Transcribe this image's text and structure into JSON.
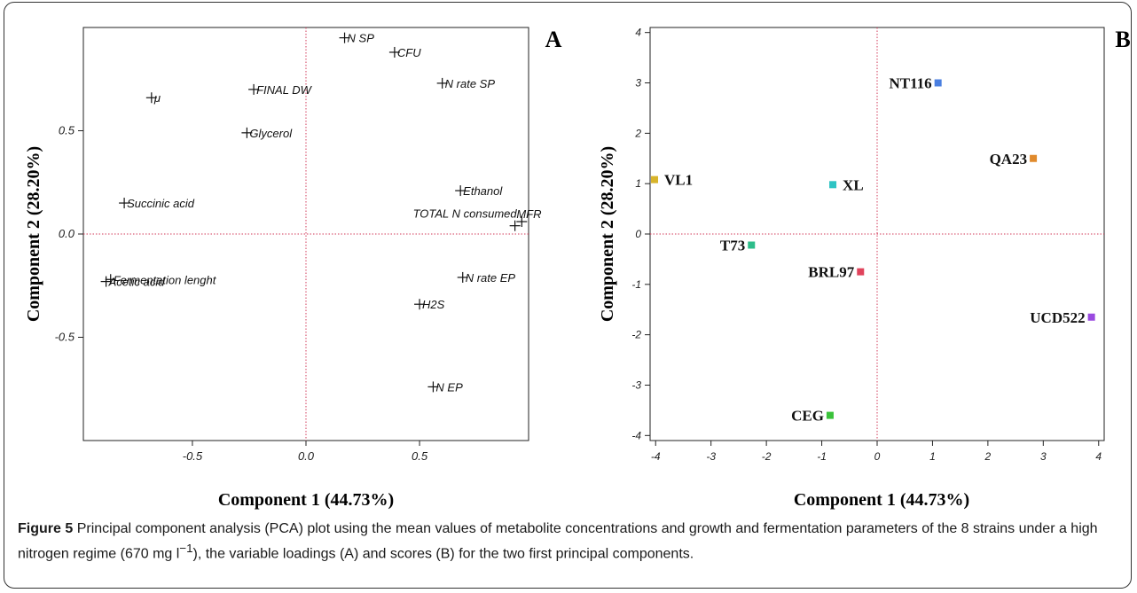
{
  "panels": {
    "A": {
      "letter": "A"
    },
    "B": {
      "letter": "B"
    }
  },
  "caption": {
    "label": "Figure 5",
    "text": "Principal component analysis (PCA) plot using the mean values of metabolite concentrations and growth and fermentation parameters of the 8 strains under a high nitrogen regime (670 mg l",
    "superscript": "−1",
    "text_end": "), the variable loadings (A) and scores (B) for the two first principal components."
  },
  "chart_data": [
    {
      "type": "scatter",
      "panel": "A",
      "xlabel": "Component 1 (44.73%)",
      "ylabel": "Component 2 (28.20%)",
      "xlim": [
        -0.98,
        0.98
      ],
      "ylim": [
        -1.0,
        1.0
      ],
      "xticks": [
        -0.5,
        0.0,
        0.5
      ],
      "yticks": [
        -0.5,
        0.0,
        0.5
      ],
      "xtick_labels": [
        "-0.5",
        "0.0",
        "0.5"
      ],
      "ytick_labels": [
        "-0.5",
        "0.0",
        "0.5"
      ],
      "grid": false,
      "points": [
        {
          "label": "N SP",
          "x": 0.17,
          "y": 0.95
        },
        {
          "label": "CFU",
          "x": 0.39,
          "y": 0.88
        },
        {
          "label": "N rate SP",
          "x": 0.6,
          "y": 0.73
        },
        {
          "label": "FINAL DW",
          "x": -0.23,
          "y": 0.7
        },
        {
          "label": "μ",
          "x": -0.68,
          "y": 0.66
        },
        {
          "label": "Glycerol",
          "x": -0.26,
          "y": 0.49
        },
        {
          "label": "Succinic acid",
          "x": -0.8,
          "y": 0.15
        },
        {
          "label": "Ethanol",
          "x": 0.68,
          "y": 0.21
        },
        {
          "label": "MFR",
          "x": 0.95,
          "y": 0.06
        },
        {
          "label": "TOTAL N consumed",
          "x": 0.92,
          "y": 0.04
        },
        {
          "label": "Fermentation lenght",
          "x": -0.86,
          "y": -0.22
        },
        {
          "label": "Acetic acid",
          "x": -0.88,
          "y": -0.23
        },
        {
          "label": "N rate EP",
          "x": 0.69,
          "y": -0.21
        },
        {
          "label": "H2S",
          "x": 0.5,
          "y": -0.34
        },
        {
          "label": "N EP",
          "x": 0.56,
          "y": -0.74
        }
      ]
    },
    {
      "type": "scatter",
      "panel": "B",
      "xlabel": "Component 1 (44.73%)",
      "ylabel": "Component 2 (28.20%)",
      "xlim": [
        -4.1,
        4.1
      ],
      "ylim": [
        -4.1,
        4.1
      ],
      "xticks": [
        -4,
        -3,
        -2,
        -1,
        0,
        1,
        2,
        3,
        4
      ],
      "yticks": [
        -4,
        -3,
        -2,
        -1,
        0,
        1,
        2,
        3,
        4
      ],
      "xtick_labels": [
        "-4",
        "-3",
        "-2",
        "-1",
        "0",
        "1",
        "2",
        "3",
        "4"
      ],
      "ytick_labels": [
        "-4",
        "-3",
        "-2",
        "-1",
        "0",
        "1",
        "2",
        "3",
        "4"
      ],
      "grid": false,
      "points": [
        {
          "label": "NT116",
          "x": 1.1,
          "y": 3.0,
          "color": "#4a7fe0"
        },
        {
          "label": "QA23",
          "x": 2.82,
          "y": 1.5,
          "color": "#e08a2c"
        },
        {
          "label": "VL1",
          "x": -4.02,
          "y": 1.08,
          "color": "#d8b42a"
        },
        {
          "label": "XL",
          "x": -0.8,
          "y": 0.98,
          "color": "#2ec4c4"
        },
        {
          "label": "T73",
          "x": -2.27,
          "y": -0.22,
          "color": "#2dbd8a"
        },
        {
          "label": "BRL97",
          "x": -0.3,
          "y": -0.75,
          "color": "#e0435c"
        },
        {
          "label": "UCD522",
          "x": 3.87,
          "y": -1.65,
          "color": "#9a4ae0"
        },
        {
          "label": "CEG",
          "x": -0.85,
          "y": -3.6,
          "color": "#3ac23a"
        }
      ]
    }
  ]
}
